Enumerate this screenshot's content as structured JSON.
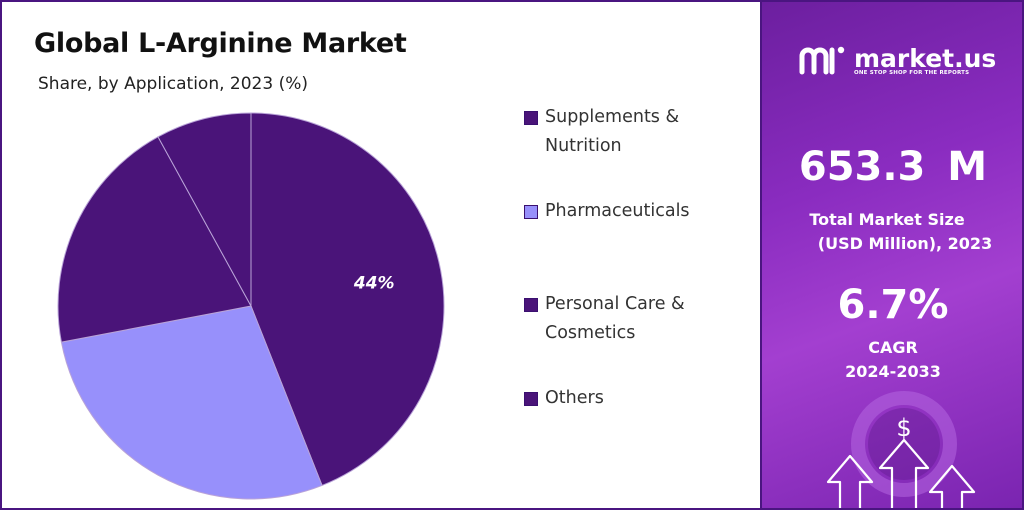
{
  "title": "Global L-Arginine Market",
  "subtitle": "Share, by Application, 2023 (%)",
  "chart_data": {
    "type": "pie",
    "title": "Global L-Arginine Market",
    "subtitle": "Share, by Application, 2023 (%)",
    "categories": [
      "Supplements & Nutrition",
      "Pharmaceuticals",
      "Personal Care & Cosmetics",
      "Others"
    ],
    "values": [
      44,
      28,
      20,
      8
    ],
    "colors": [
      "#4a1479",
      "#9790fb",
      "#4a1479",
      "#4a1479"
    ],
    "data_labels": [
      {
        "category": "Supplements & Nutrition",
        "text": "44%"
      }
    ],
    "legend_position": "right"
  },
  "legend": [
    {
      "label_lines": [
        "Supplements &",
        "Nutrition"
      ],
      "color": "#4a1479"
    },
    {
      "label_lines": [
        "Pharmaceuticals"
      ],
      "color": "#9790fb"
    },
    {
      "label_lines": [
        "Personal Care &",
        "Cosmetics"
      ],
      "color": "#4a1479"
    },
    {
      "label_lines": [
        "Others"
      ],
      "color": "#4a1479"
    }
  ],
  "sidebar": {
    "brand": "market.us",
    "tagline": "ONE STOP SHOP FOR THE REPORTS",
    "market_size": "653.3 M",
    "market_size_label_1": "Total Market Size",
    "market_size_label_2": "(USD Million), 2023",
    "cagr": "6.7%",
    "cagr_label_1": "CAGR",
    "cagr_label_2": "2024-2033",
    "dollar_symbol": "$"
  },
  "colors": {
    "accent": "#4a1479",
    "light_slice": "#9790fb",
    "panel_purple": "#8a2cc0"
  }
}
